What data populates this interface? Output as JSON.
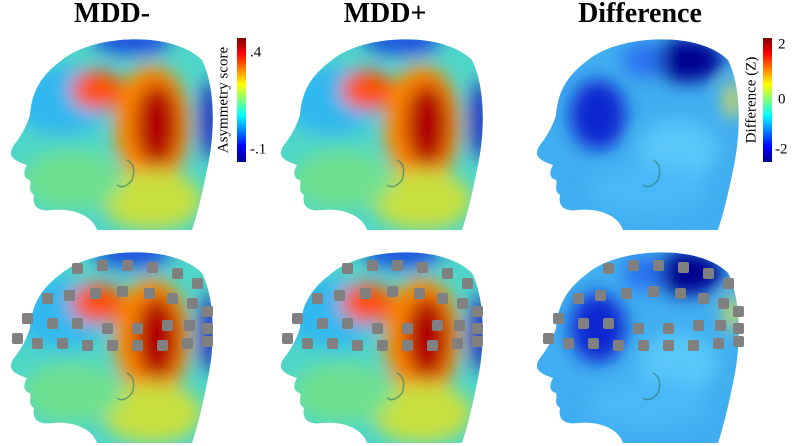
{
  "panels": [
    {
      "title": "MDD-"
    },
    {
      "title": "MDD+"
    },
    {
      "title": "Difference"
    }
  ],
  "colorbars": [
    {
      "label": "Asymmetry score",
      "ticks": [
        ".4",
        "-.1"
      ]
    },
    {
      "label": "Difference (Z)",
      "ticks": [
        "2",
        "0",
        "-2"
      ]
    }
  ]
}
